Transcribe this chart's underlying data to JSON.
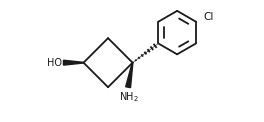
{
  "bg_color": "#ffffff",
  "line_color": "#1a1a1a",
  "line_width": 1.3,
  "fig_width": 2.64,
  "fig_height": 1.22,
  "dpi": 100
}
